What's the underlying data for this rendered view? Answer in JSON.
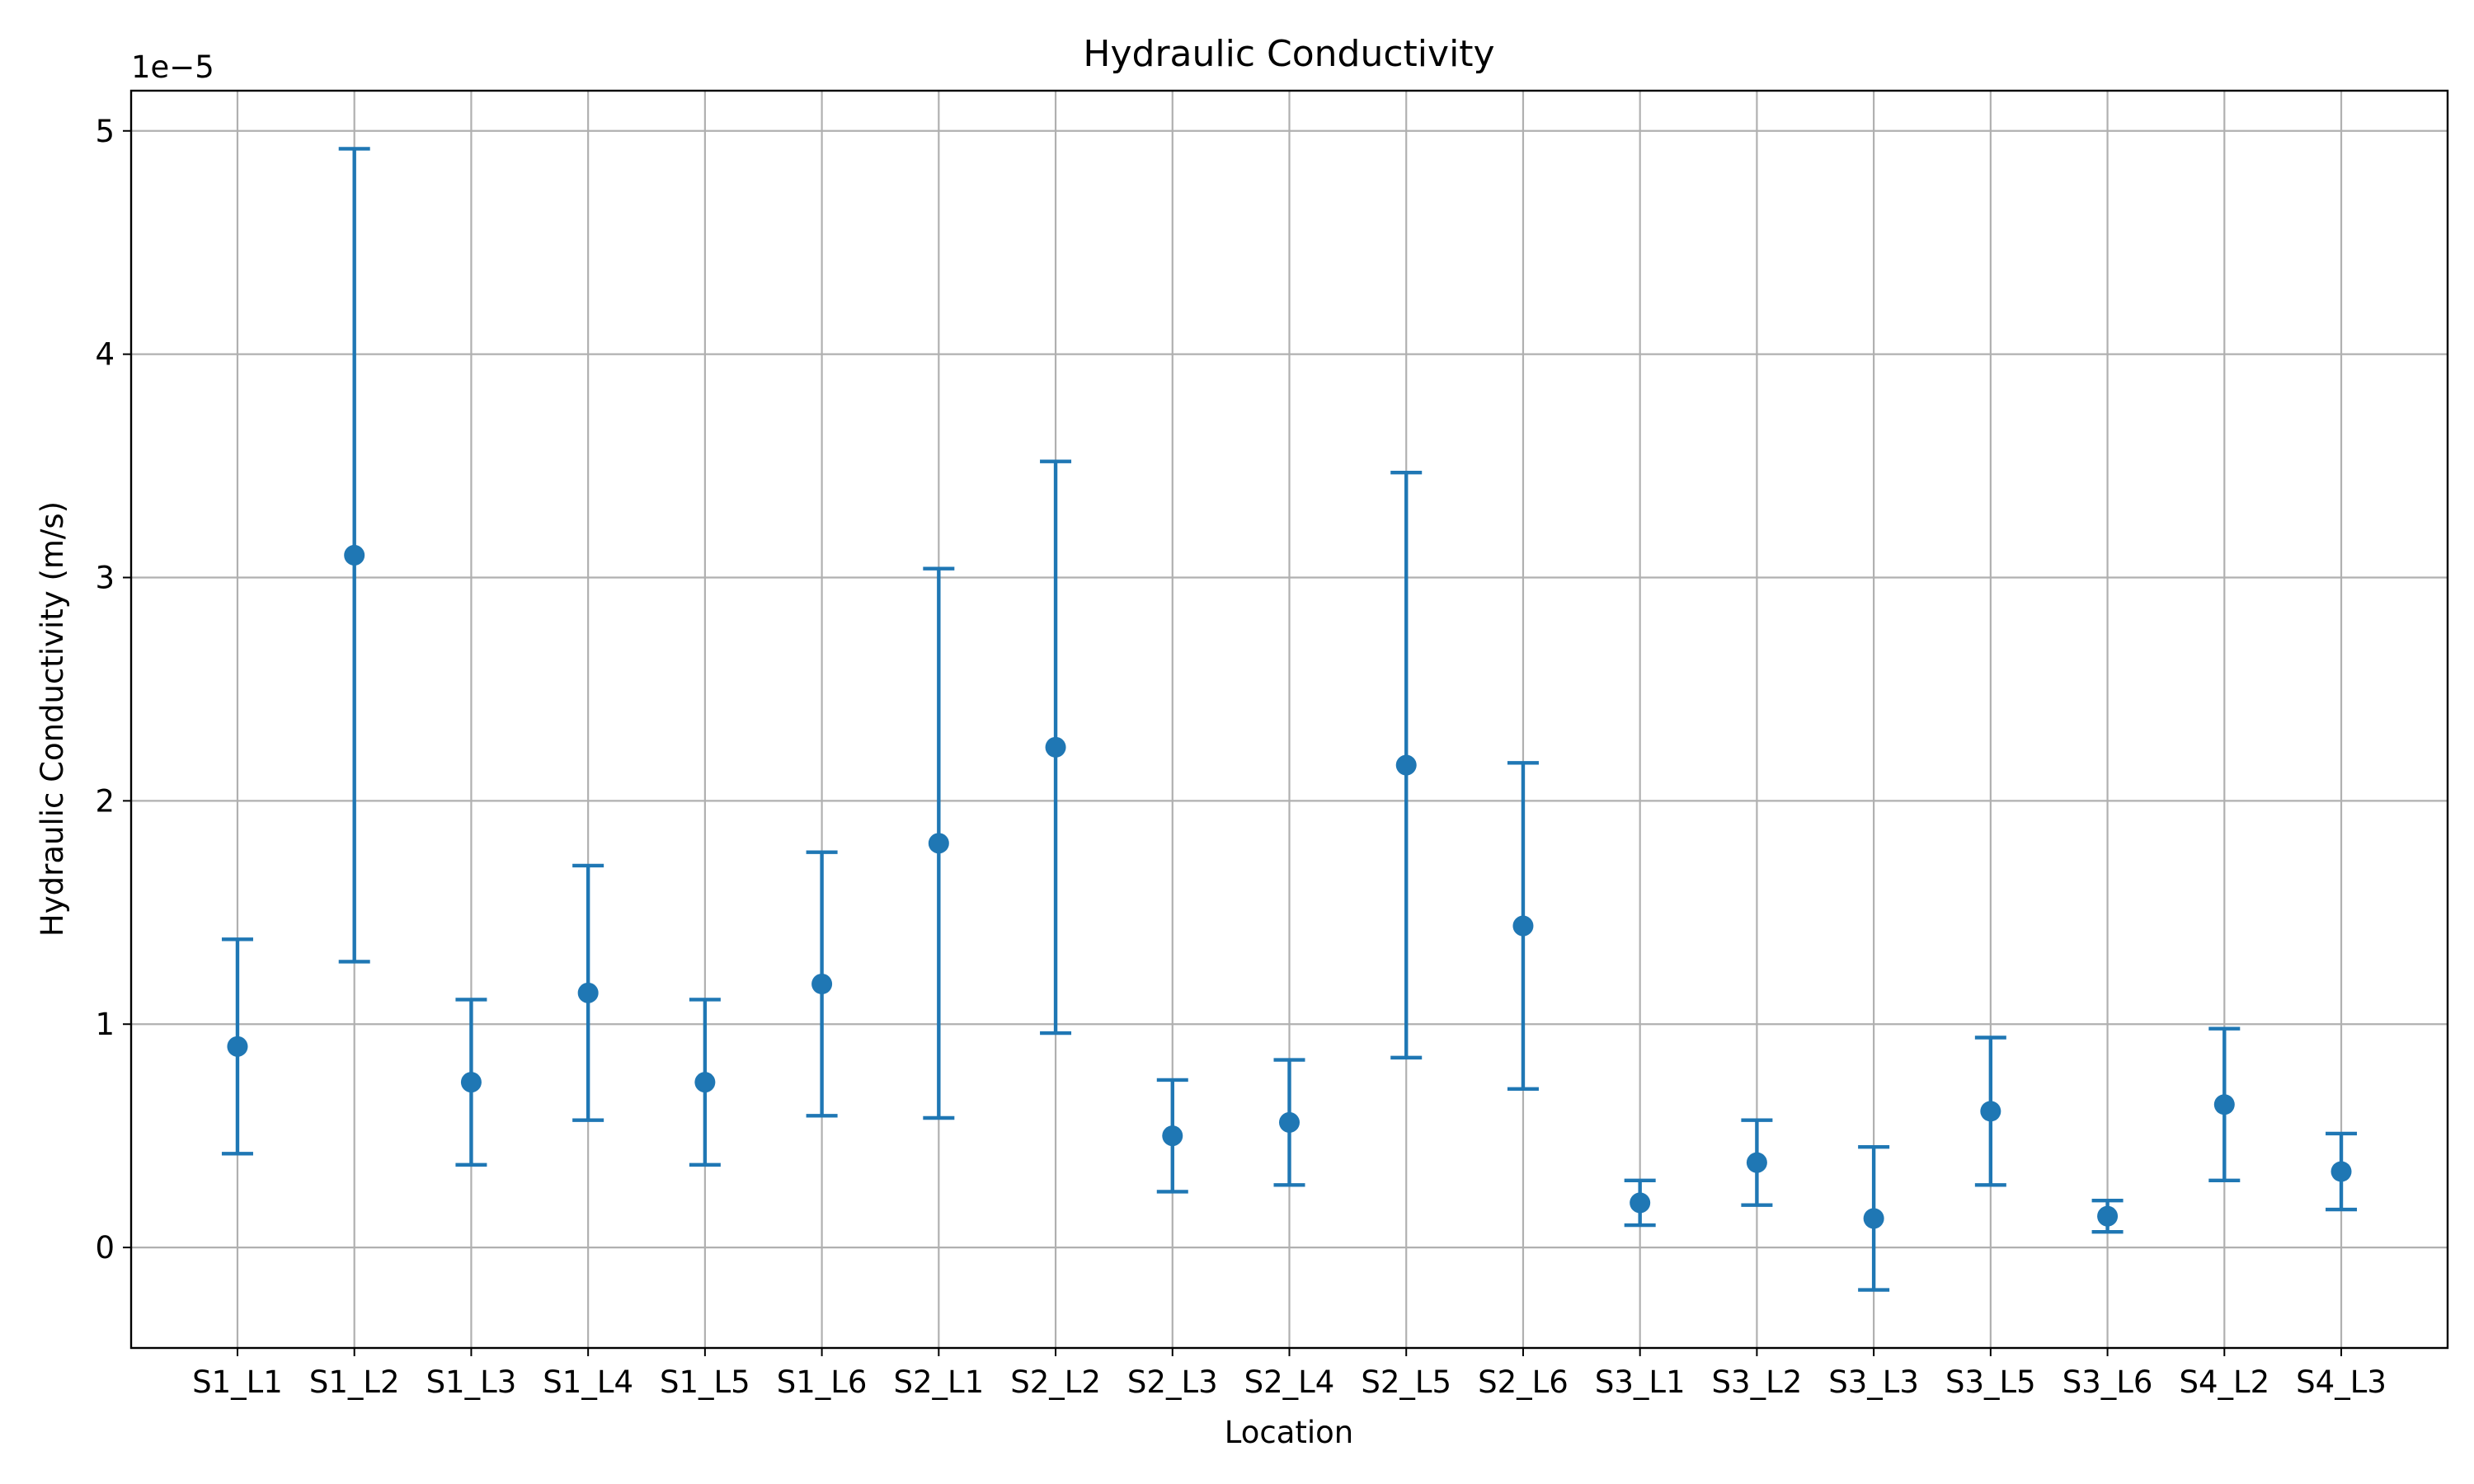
{
  "chart_data": {
    "type": "errorbar",
    "title": "Hydraulic Conductivity",
    "xlabel": "Location",
    "ylabel": "Hydraulic Conductivity (m/s)",
    "y_offset_label": "1e−5",
    "y_scale_factor": 1e-05,
    "ylim": [
      -0.45,
      5.18
    ],
    "yticks": [
      0,
      1,
      2,
      3,
      4,
      5
    ],
    "grid": true,
    "color": "#1f77b4",
    "categories": [
      "S1_L1",
      "S1_L2",
      "S1_L3",
      "S1_L4",
      "S1_L5",
      "S1_L6",
      "S2_L1",
      "S2_L2",
      "S2_L3",
      "S2_L4",
      "S2_L5",
      "S2_L6",
      "S3_L1",
      "S3_L2",
      "S3_L3",
      "S3_L5",
      "S3_L6",
      "S4_L2",
      "S4_L3"
    ],
    "values": [
      0.9,
      3.1,
      0.74,
      1.14,
      0.74,
      1.18,
      1.81,
      2.24,
      0.5,
      0.56,
      2.16,
      1.44,
      0.2,
      0.38,
      0.13,
      0.61,
      0.14,
      0.64,
      0.34
    ],
    "errors": [
      0.48,
      1.82,
      0.37,
      0.57,
      0.37,
      0.59,
      1.23,
      1.28,
      0.25,
      0.28,
      1.31,
      0.73,
      0.1,
      0.19,
      0.32,
      0.33,
      0.07,
      0.34,
      0.17
    ]
  }
}
